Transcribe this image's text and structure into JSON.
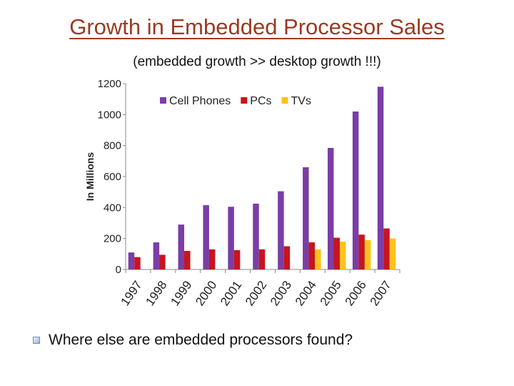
{
  "slide": {
    "title": "Growth in Embedded Processor Sales",
    "subtitle": "(embedded growth >> desktop growth !!!)",
    "bullet_text": "Where else are embedded processors found?",
    "bullet_icon": "square-bullet-icon"
  },
  "chart_data": {
    "type": "bar",
    "title": "",
    "xlabel": "",
    "ylabel": "In Millions",
    "ylim": [
      0,
      1200
    ],
    "yticks": [
      0,
      200,
      400,
      600,
      800,
      1000,
      1200
    ],
    "grid": false,
    "legend_position": "top",
    "categories": [
      "1997",
      "1998",
      "1999",
      "2000",
      "2001",
      "2002",
      "2003",
      "2004",
      "2005",
      "2006",
      "2007"
    ],
    "series": [
      {
        "name": "Cell Phones",
        "color": "#7a3ea6",
        "values": [
          110,
          175,
          290,
          415,
          405,
          425,
          505,
          660,
          785,
          1020,
          1180
        ]
      },
      {
        "name": "PCs",
        "color": "#c8141e",
        "values": [
          80,
          95,
          120,
          130,
          125,
          130,
          150,
          175,
          205,
          225,
          265
        ]
      },
      {
        "name": "TVs",
        "color": "#ffc21a",
        "values": [
          null,
          null,
          null,
          null,
          null,
          null,
          null,
          130,
          180,
          190,
          200
        ]
      }
    ]
  }
}
